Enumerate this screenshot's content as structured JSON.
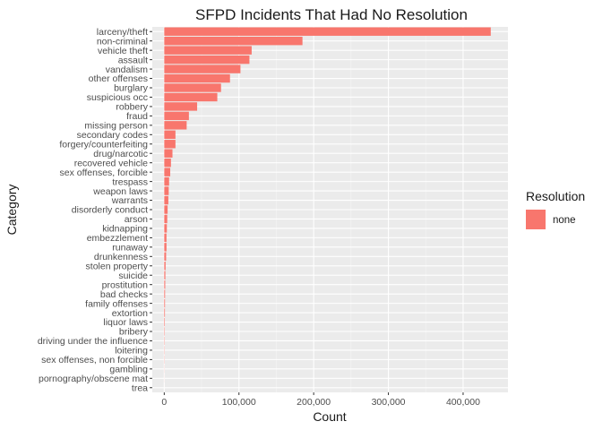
{
  "chart_data": {
    "type": "bar",
    "orientation": "horizontal",
    "title": "SFPD Incidents That Had No Resolution",
    "xlabel": "Count",
    "ylabel": "Category",
    "xlim": [
      -16000,
      460000
    ],
    "x_ticks": [
      0,
      100000,
      200000,
      300000,
      400000
    ],
    "x_tick_labels": [
      "0",
      "100,000",
      "200,000",
      "300,000",
      "400,000"
    ],
    "grid": true,
    "legend_position": "right",
    "legend": {
      "title": "Resolution",
      "entries": [
        {
          "label": "none",
          "color": "#F8766D"
        }
      ]
    },
    "series": [
      {
        "name": "none",
        "color": "#F8766D"
      }
    ],
    "categories": [
      "larceny/theft",
      "non-criminal",
      "vehicle theft",
      "assault",
      "vandalism",
      "other offenses",
      "burglary",
      "suspicious occ",
      "robbery",
      "fraud",
      "missing person",
      "secondary codes",
      "forgery/counterfeiting",
      "drug/narcotic",
      "recovered vehicle",
      "sex offenses, forcible",
      "trespass",
      "weapon laws",
      "warrants",
      "disorderly conduct",
      "arson",
      "kidnapping",
      "embezzlement",
      "runaway",
      "drunkenness",
      "stolen property",
      "suicide",
      "prostitution",
      "bad checks",
      "family offenses",
      "extortion",
      "liquor laws",
      "bribery",
      "driving under the influence",
      "loitering",
      "sex offenses, non forcible",
      "gambling",
      "pornography/obscene mat",
      "trea"
    ],
    "values": [
      437000,
      185000,
      117000,
      114000,
      102000,
      88000,
      76000,
      71000,
      44000,
      33000,
      30000,
      15000,
      15000,
      11000,
      9000,
      8000,
      6500,
      6000,
      5500,
      4500,
      4000,
      3500,
      3000,
      3000,
      2500,
      1800,
      1500,
      1300,
      1100,
      1000,
      900,
      700,
      500,
      400,
      300,
      250,
      150,
      80,
      20
    ]
  }
}
